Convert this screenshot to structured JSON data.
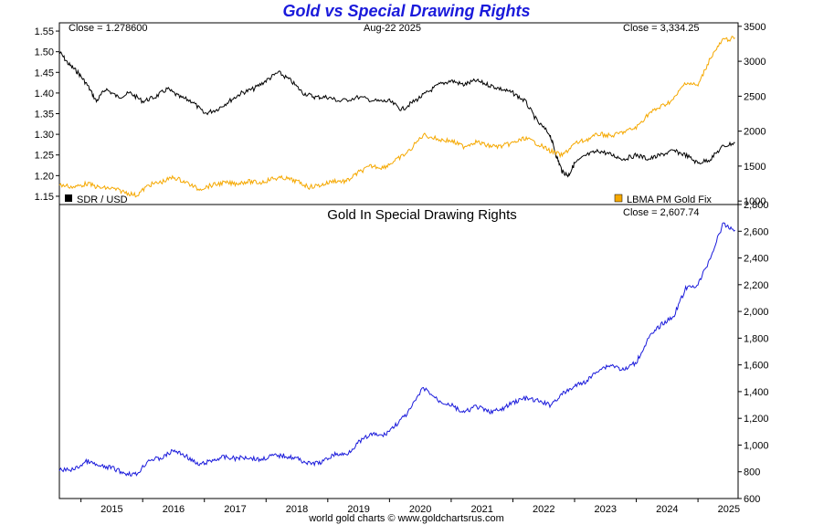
{
  "title": "Gold vs Special Drawing Rights",
  "footer": "world gold charts © www.goldchartsrus.com",
  "top_panel": {
    "close_left": "Close = 1.278600",
    "date": "Aug-22  2025",
    "close_right": "Close = 3,334.25",
    "legend_left": "SDR / USD",
    "legend_right": "LBMA PM Gold Fix"
  },
  "bottom_panel": {
    "title": "Gold In Special Drawing Rights",
    "close": "Close = 2,607.74"
  },
  "colors": {
    "title": "#1a1adb",
    "sdr": "#000000",
    "gold_usd": "#f5a800",
    "gold_sdr": "#1a1adb"
  },
  "chart_data": [
    {
      "type": "line",
      "x_labels": [
        "2015",
        "2016",
        "2017",
        "2018",
        "2019",
        "2020",
        "2021",
        "2022",
        "2023",
        "2024",
        "2025"
      ],
      "y_left": {
        "ylim": [
          1.13,
          1.57
        ],
        "ticks": [
          "1.55",
          "1.50",
          "1.45",
          "1.40",
          "1.35",
          "1.30",
          "1.25",
          "1.20",
          "1.15"
        ],
        "values": [
          1.55,
          1.5,
          1.45,
          1.4,
          1.35,
          1.3,
          1.25,
          1.2,
          1.15
        ]
      },
      "y_right": {
        "ylim": [
          950,
          3550
        ],
        "ticks": [
          "3500",
          "3000",
          "2500",
          "2000",
          "1500",
          "1000"
        ],
        "values": [
          3500,
          3000,
          2500,
          2000,
          1500,
          1000
        ]
      },
      "series": [
        {
          "name": "SDR / USD",
          "axis": "left",
          "x": [
            2014.65,
            2014.8,
            2014.95,
            2015.1,
            2015.25,
            2015.4,
            2015.6,
            2015.8,
            2016.0,
            2016.2,
            2016.4,
            2016.6,
            2016.8,
            2017.0,
            2017.2,
            2017.4,
            2017.6,
            2017.8,
            2018.0,
            2018.2,
            2018.4,
            2018.6,
            2018.8,
            2019.0,
            2019.2,
            2019.5,
            2019.8,
            2020.0,
            2020.2,
            2020.4,
            2020.6,
            2020.8,
            2021.0,
            2021.2,
            2021.4,
            2021.6,
            2021.8,
            2022.0,
            2022.2,
            2022.4,
            2022.6,
            2022.7,
            2022.8,
            2022.9,
            2023.0,
            2023.2,
            2023.4,
            2023.6,
            2023.8,
            2024.0,
            2024.2,
            2024.4,
            2024.6,
            2024.8,
            2025.0,
            2025.2,
            2025.4,
            2025.6
          ],
          "values": [
            1.5,
            1.47,
            1.45,
            1.42,
            1.38,
            1.41,
            1.39,
            1.4,
            1.38,
            1.39,
            1.41,
            1.39,
            1.38,
            1.35,
            1.36,
            1.38,
            1.4,
            1.41,
            1.43,
            1.45,
            1.43,
            1.4,
            1.39,
            1.39,
            1.38,
            1.39,
            1.38,
            1.38,
            1.36,
            1.38,
            1.4,
            1.42,
            1.43,
            1.42,
            1.43,
            1.42,
            1.41,
            1.4,
            1.38,
            1.33,
            1.3,
            1.25,
            1.21,
            1.2,
            1.23,
            1.25,
            1.26,
            1.25,
            1.24,
            1.25,
            1.24,
            1.25,
            1.26,
            1.25,
            1.23,
            1.24,
            1.27,
            1.28
          ]
        },
        {
          "name": "LBMA PM Gold Fix",
          "axis": "right",
          "x": [
            2014.65,
            2014.9,
            2015.1,
            2015.3,
            2015.5,
            2015.7,
            2015.9,
            2016.1,
            2016.3,
            2016.5,
            2016.7,
            2016.9,
            2017.1,
            2017.3,
            2017.5,
            2017.7,
            2017.9,
            2018.1,
            2018.3,
            2018.5,
            2018.7,
            2018.9,
            2019.1,
            2019.3,
            2019.5,
            2019.7,
            2019.9,
            2020.1,
            2020.3,
            2020.55,
            2020.8,
            2021.0,
            2021.2,
            2021.4,
            2021.6,
            2021.8,
            2022.0,
            2022.2,
            2022.4,
            2022.6,
            2022.8,
            2023.0,
            2023.2,
            2023.4,
            2023.6,
            2023.8,
            2024.0,
            2024.2,
            2024.4,
            2024.6,
            2024.8,
            2025.0,
            2025.2,
            2025.4,
            2025.6
          ],
          "values": [
            1230,
            1200,
            1250,
            1190,
            1180,
            1130,
            1080,
            1230,
            1270,
            1340,
            1270,
            1170,
            1220,
            1260,
            1250,
            1280,
            1260,
            1320,
            1330,
            1280,
            1200,
            1230,
            1290,
            1280,
            1410,
            1500,
            1480,
            1580,
            1700,
            1950,
            1880,
            1860,
            1780,
            1850,
            1790,
            1780,
            1830,
            1900,
            1820,
            1720,
            1650,
            1820,
            1880,
            1960,
            1930,
            1990,
            2050,
            2250,
            2350,
            2450,
            2700,
            2650,
            3050,
            3300,
            3334
          ]
        },
        {
          "name": "Gold In Special Drawing Rights",
          "axis": "bottom",
          "x": [
            2014.65,
            2014.9,
            2015.1,
            2015.3,
            2015.5,
            2015.7,
            2015.9,
            2016.1,
            2016.3,
            2016.5,
            2016.7,
            2016.9,
            2017.1,
            2017.3,
            2017.5,
            2017.7,
            2017.9,
            2018.1,
            2018.3,
            2018.5,
            2018.7,
            2018.9,
            2019.1,
            2019.3,
            2019.5,
            2019.7,
            2019.9,
            2020.1,
            2020.3,
            2020.55,
            2020.8,
            2021.0,
            2021.2,
            2021.4,
            2021.6,
            2021.8,
            2022.0,
            2022.2,
            2022.4,
            2022.6,
            2022.8,
            2023.0,
            2023.2,
            2023.4,
            2023.6,
            2023.8,
            2024.0,
            2024.2,
            2024.4,
            2024.6,
            2024.8,
            2025.0,
            2025.2,
            2025.4,
            2025.6
          ],
          "values": [
            810,
            820,
            880,
            840,
            830,
            790,
            780,
            890,
            900,
            960,
            920,
            850,
            880,
            910,
            900,
            910,
            890,
            920,
            920,
            900,
            860,
            870,
            930,
            930,
            1020,
            1080,
            1070,
            1150,
            1240,
            1430,
            1330,
            1300,
            1240,
            1290,
            1250,
            1260,
            1320,
            1350,
            1330,
            1300,
            1380,
            1440,
            1480,
            1570,
            1600,
            1560,
            1620,
            1800,
            1900,
            1960,
            2170,
            2200,
            2400,
            2650,
            2608
          ]
        }
      ]
    },
    {
      "type": "line",
      "y": {
        "ylim": [
          600,
          2800
        ],
        "ticks": [
          "2,800",
          "2,600",
          "2,400",
          "2,200",
          "2,000",
          "1,800",
          "1,600",
          "1,400",
          "1,200",
          "1,000",
          "800",
          "600"
        ],
        "values": [
          2800,
          2600,
          2400,
          2200,
          2000,
          1800,
          1600,
          1400,
          1200,
          1000,
          800,
          600
        ]
      }
    }
  ]
}
